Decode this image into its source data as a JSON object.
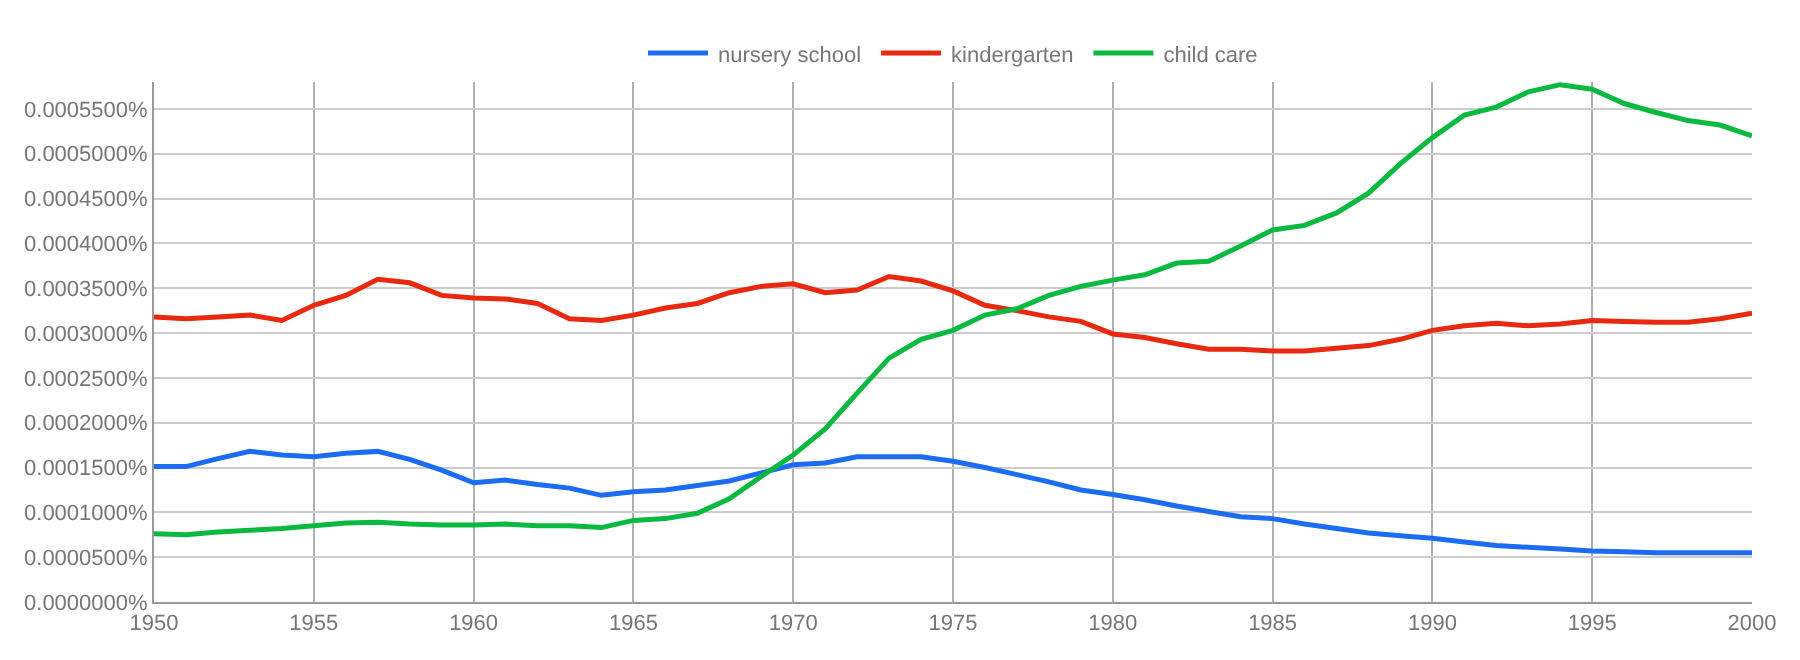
{
  "chart_data": {
    "type": "line",
    "x": [
      1950,
      1951,
      1952,
      1953,
      1954,
      1955,
      1956,
      1957,
      1958,
      1959,
      1960,
      1961,
      1962,
      1963,
      1964,
      1965,
      1966,
      1967,
      1968,
      1969,
      1970,
      1971,
      1972,
      1973,
      1974,
      1975,
      1976,
      1977,
      1978,
      1979,
      1980,
      1981,
      1982,
      1983,
      1984,
      1985,
      1986,
      1987,
      1988,
      1989,
      1990,
      1991,
      1992,
      1993,
      1994,
      1995,
      1996,
      1997,
      1998,
      1999,
      2000
    ],
    "series": [
      {
        "name": "nursery school",
        "color": "#1c6cf2",
        "values": [
          0.000151,
          0.000151,
          0.00016,
          0.000168,
          0.000164,
          0.000162,
          0.000166,
          0.000168,
          0.000159,
          0.000147,
          0.000133,
          0.000136,
          0.000131,
          0.000127,
          0.000119,
          0.000123,
          0.000125,
          0.00013,
          0.000135,
          0.000144,
          0.000153,
          0.000155,
          0.000162,
          0.000162,
          0.000162,
          0.000157,
          0.00015,
          0.000142,
          0.000134,
          0.000125,
          0.00012,
          0.000114,
          0.000107,
          0.000101,
          9.5e-05,
          9.3e-05,
          8.7e-05,
          8.2e-05,
          7.7e-05,
          7.4e-05,
          7.1e-05,
          6.7e-05,
          6.3e-05,
          6.1e-05,
          5.9e-05,
          5.7e-05,
          5.6e-05,
          5.5e-05,
          5.5e-05,
          5.5e-05,
          5.5e-05
        ]
      },
      {
        "name": "kindergarten",
        "color": "#e8280f",
        "values": [
          0.000318,
          0.000316,
          0.000318,
          0.00032,
          0.000314,
          0.000331,
          0.000342,
          0.00036,
          0.000356,
          0.000342,
          0.000339,
          0.000338,
          0.000333,
          0.000316,
          0.000314,
          0.00032,
          0.000328,
          0.000333,
          0.000345,
          0.000352,
          0.000355,
          0.000345,
          0.000348,
          0.000363,
          0.000358,
          0.000347,
          0.000331,
          0.000325,
          0.000318,
          0.000313,
          0.000299,
          0.000295,
          0.000288,
          0.000282,
          0.000282,
          0.00028,
          0.00028,
          0.000283,
          0.000286,
          0.000293,
          0.000303,
          0.000308,
          0.000311,
          0.000308,
          0.00031,
          0.000314,
          0.000313,
          0.000312,
          0.000312,
          0.000316,
          0.000322
        ]
      },
      {
        "name": "child care",
        "color": "#0ab93f",
        "values": [
          7.6e-05,
          7.5e-05,
          7.8e-05,
          8e-05,
          8.2e-05,
          8.5e-05,
          8.8e-05,
          8.9e-05,
          8.7e-05,
          8.6e-05,
          8.6e-05,
          8.7e-05,
          8.5e-05,
          8.5e-05,
          8.3e-05,
          9.1e-05,
          9.3e-05,
          9.9e-05,
          0.000115,
          0.00014,
          0.000164,
          0.000193,
          0.000233,
          0.000272,
          0.000293,
          0.000303,
          0.00032,
          0.000327,
          0.000342,
          0.000352,
          0.000359,
          0.000365,
          0.000378,
          0.00038,
          0.000397,
          0.000415,
          0.00042,
          0.000434,
          0.000456,
          0.000489,
          0.000518,
          0.000543,
          0.000552,
          0.000569,
          0.000577,
          0.000572,
          0.000556,
          0.000546,
          0.000537,
          0.000532,
          0.00052
        ]
      }
    ],
    "xlim": [
      1950,
      2000
    ],
    "xticks": [
      1950,
      1955,
      1960,
      1965,
      1970,
      1975,
      1980,
      1985,
      1990,
      1995,
      2000
    ],
    "ylim": [
      0,
      0.00058
    ],
    "yticks": [
      {
        "value": 0,
        "label": "0.0000000%"
      },
      {
        "value": 5e-05,
        "label": "0.0000500%"
      },
      {
        "value": 0.0001,
        "label": "0.0001000%"
      },
      {
        "value": 0.00015,
        "label": "0.0001500%"
      },
      {
        "value": 0.0002,
        "label": "0.0002000%"
      },
      {
        "value": 0.00025,
        "label": "0.0002500%"
      },
      {
        "value": 0.0003,
        "label": "0.0003000%"
      },
      {
        "value": 0.00035,
        "label": "0.0003500%"
      },
      {
        "value": 0.0004,
        "label": "0.0004000%"
      },
      {
        "value": 0.00045,
        "label": "0.0004500%"
      },
      {
        "value": 0.0005,
        "label": "0.0005000%"
      },
      {
        "value": 0.00055,
        "label": "0.0005500%"
      }
    ],
    "grid": true,
    "legend": "top",
    "marker": "none",
    "line_style": "solid"
  }
}
